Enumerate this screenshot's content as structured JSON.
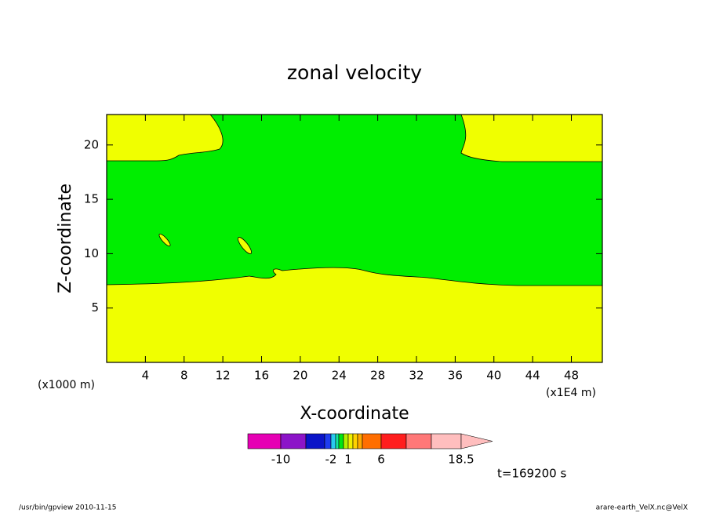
{
  "chart_data": {
    "type": "contour",
    "title": "zonal velocity",
    "xlabel": "X-coordinate",
    "ylabel": "Z-coordinate",
    "x_unit_left": "(x1000 m)",
    "x_unit_right": "(x1E4 m)",
    "time_label": "t=169200 s",
    "footer_left": "/usr/bin/gpview  2010-11-15",
    "footer_right": "arare-earth_VelX.nc@VelX",
    "xlim": [
      0,
      51.2
    ],
    "xticks": [
      4,
      8,
      12,
      16,
      20,
      24,
      28,
      32,
      36,
      40,
      44,
      48
    ],
    "ylim": [
      0,
      22.8
    ],
    "yticks": [
      5,
      10,
      15,
      20
    ],
    "colorbar": {
      "colors": [
        "#e600b4",
        "#8c14c8",
        "#0a14c8",
        "#1e3cf0",
        "#28c8f0",
        "#14e6a0",
        "#00e614",
        "#b4f000",
        "#f0f000",
        "#ffd200",
        "#ffaa00",
        "#ff6e00",
        "#ff1e1e",
        "#ff7878",
        "#ffbebe"
      ],
      "ticks": [
        -10,
        -2,
        1,
        6,
        18.5
      ]
    }
  }
}
